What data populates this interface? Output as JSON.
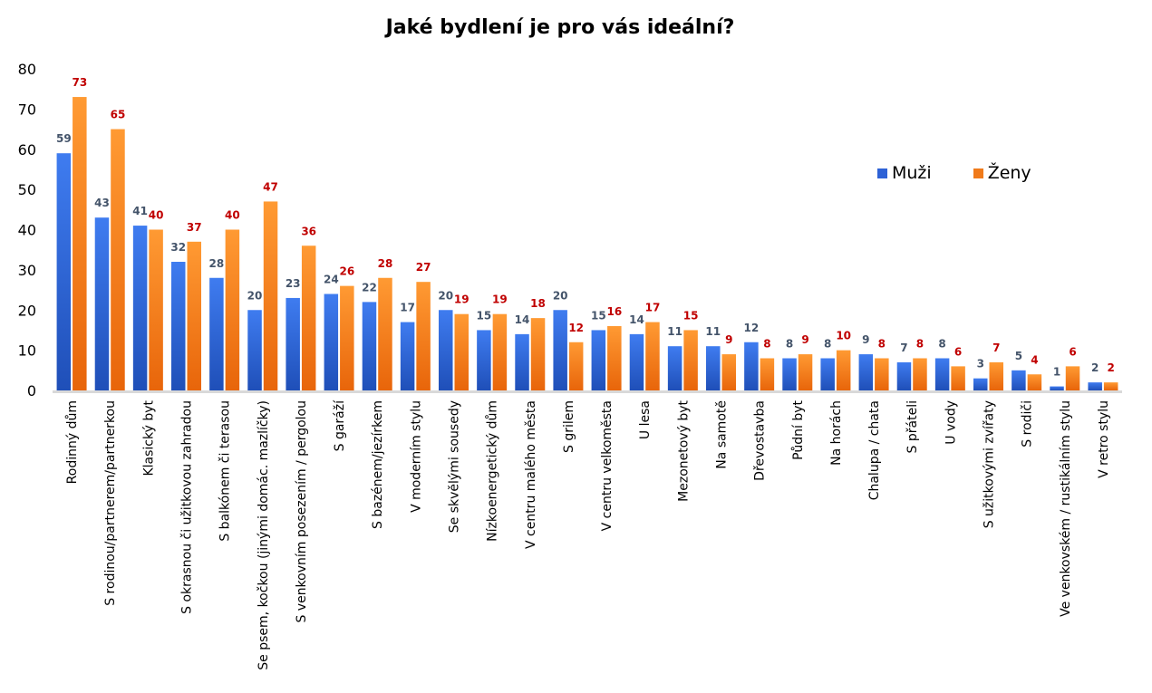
{
  "chart_data": {
    "type": "bar",
    "title": "Jaké bydlení je pro vás ideální?",
    "xlabel": "",
    "ylabel": "",
    "ylim": [
      0,
      80
    ],
    "yticks": [
      0,
      10,
      20,
      30,
      40,
      50,
      60,
      70,
      80
    ],
    "grid": false,
    "legend": "right",
    "categories": [
      "Rodinný dům",
      "S rodinou/partnerem/partnerkou",
      "Klasický byt",
      "S okrasnou či užitkovou zahradou",
      "S balkónem či terasou",
      "Se psem, kočkou (jinými domác. mazlíčky)",
      "S venkovním posezením / pergolou",
      "S garáží",
      "S bazénem/jezírkem",
      "V moderním stylu",
      "Se skvělými sousedy",
      "Nízkoenergetický dům",
      "V centru malého města",
      "S grilem",
      "V centru velkoměsta",
      "U lesa",
      "Mezonetový byt",
      "Na samotě",
      "Dřevostavba",
      "Půdní byt",
      "Na horách",
      "Chalupa / chata",
      "S přáteli",
      "U vody",
      "S užitkovými zvířaty",
      "S rodiči",
      "Ve venkovském / rustikálním stylu",
      "V retro stylu"
    ],
    "series": [
      {
        "name": "Muži",
        "color": "#2e62d6",
        "label_color": "#44546a",
        "values": [
          59,
          43,
          41,
          32,
          28,
          20,
          23,
          24,
          22,
          17,
          20,
          15,
          14,
          20,
          15,
          14,
          11,
          11,
          12,
          8,
          8,
          9,
          7,
          8,
          3,
          5,
          1,
          2
        ]
      },
      {
        "name": "Ženy",
        "color": "#f07a1a",
        "label_color": "#c00000",
        "values": [
          73,
          65,
          40,
          37,
          40,
          47,
          36,
          26,
          28,
          27,
          19,
          19,
          18,
          12,
          16,
          17,
          15,
          9,
          8,
          9,
          10,
          8,
          8,
          6,
          7,
          4,
          6,
          2
        ]
      }
    ]
  }
}
